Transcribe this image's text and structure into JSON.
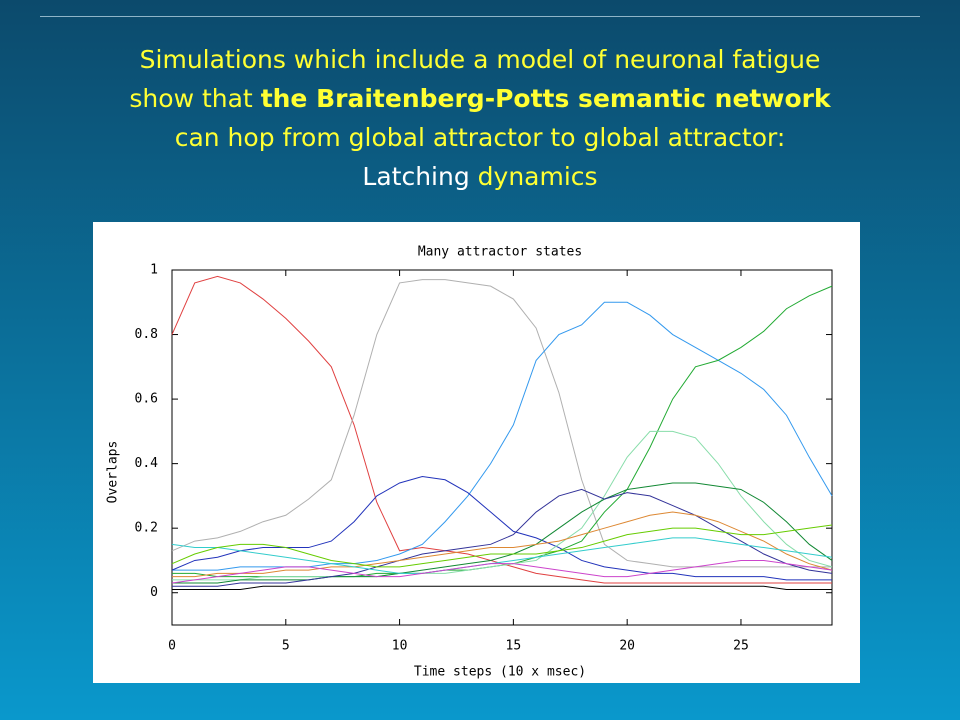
{
  "slide": {
    "heading_lines": [
      [
        {
          "text": "Simulations which include a model of neuronal fatigue",
          "bold": false,
          "color": "#ffff33"
        }
      ],
      [
        {
          "text": "show that ",
          "bold": false,
          "color": "#ffff33"
        },
        {
          "text": "the Braitenberg-Potts semantic network",
          "bold": true,
          "color": "#ffff33"
        }
      ],
      [
        {
          "text": "can hop from global attractor to global attractor:",
          "bold": false,
          "color": "#ffff33"
        }
      ],
      [
        {
          "text": "Latching",
          "bold": false,
          "color": "#ffffff"
        },
        {
          "text": " dynamics",
          "bold": false,
          "color": "#ffff33"
        }
      ]
    ]
  },
  "chart_data": {
    "type": "line",
    "title": "Many attractor states",
    "x_label": "Time steps (10 x msec)",
    "y_label": "Overlaps",
    "x": [
      0,
      1,
      2,
      3,
      4,
      5,
      6,
      7,
      8,
      9,
      10,
      11,
      12,
      13,
      14,
      15,
      16,
      17,
      18,
      19,
      20,
      21,
      22,
      23,
      24,
      25,
      26,
      27,
      28,
      29
    ],
    "xlim": [
      0,
      29
    ],
    "xticks": [
      0,
      5,
      10,
      15,
      20,
      25
    ],
    "ylim": [
      -0.1,
      1
    ],
    "yticks": [
      0,
      0.2,
      0.4,
      0.6,
      0.8,
      1
    ],
    "series": [
      {
        "color": "#e04040",
        "values": [
          0.8,
          0.96,
          0.98,
          0.96,
          0.91,
          0.85,
          0.78,
          0.7,
          0.52,
          0.28,
          0.13,
          0.14,
          0.13,
          0.12,
          0.1,
          0.08,
          0.06,
          0.05,
          0.04,
          0.03,
          0.03,
          0.03,
          0.03,
          0.03,
          0.03,
          0.03,
          0.03,
          0.03,
          0.03,
          0.03
        ]
      },
      {
        "color": "#b0b0b0",
        "values": [
          0.13,
          0.16,
          0.17,
          0.19,
          0.22,
          0.24,
          0.29,
          0.35,
          0.55,
          0.8,
          0.96,
          0.97,
          0.97,
          0.96,
          0.95,
          0.91,
          0.82,
          0.62,
          0.35,
          0.15,
          0.1,
          0.09,
          0.08,
          0.08,
          0.08,
          0.08,
          0.08,
          0.08,
          0.08,
          0.08
        ]
      },
      {
        "color": "#3399ee",
        "values": [
          0.07,
          0.07,
          0.07,
          0.08,
          0.08,
          0.08,
          0.08,
          0.09,
          0.09,
          0.1,
          0.12,
          0.15,
          0.22,
          0.3,
          0.4,
          0.52,
          0.72,
          0.8,
          0.83,
          0.9,
          0.9,
          0.86,
          0.8,
          0.76,
          0.72,
          0.68,
          0.63,
          0.55,
          0.42,
          0.3
        ]
      },
      {
        "color": "#2233bb",
        "values": [
          0.07,
          0.1,
          0.11,
          0.13,
          0.14,
          0.14,
          0.14,
          0.16,
          0.22,
          0.3,
          0.34,
          0.36,
          0.35,
          0.31,
          0.25,
          0.19,
          0.17,
          0.14,
          0.1,
          0.08,
          0.07,
          0.06,
          0.06,
          0.05,
          0.05,
          0.05,
          0.05,
          0.04,
          0.04,
          0.04
        ]
      },
      {
        "color": "#22aa33",
        "values": [
          0.06,
          0.06,
          0.05,
          0.05,
          0.05,
          0.05,
          0.05,
          0.05,
          0.05,
          0.06,
          0.06,
          0.06,
          0.07,
          0.07,
          0.08,
          0.09,
          0.11,
          0.13,
          0.16,
          0.25,
          0.32,
          0.45,
          0.6,
          0.7,
          0.72,
          0.76,
          0.81,
          0.88,
          0.92,
          0.95
        ]
      },
      {
        "color": "#88ddaa",
        "values": [
          0.04,
          0.04,
          0.04,
          0.04,
          0.05,
          0.05,
          0.05,
          0.05,
          0.05,
          0.05,
          0.06,
          0.06,
          0.06,
          0.07,
          0.08,
          0.09,
          0.1,
          0.15,
          0.2,
          0.3,
          0.42,
          0.5,
          0.5,
          0.48,
          0.4,
          0.3,
          0.22,
          0.15,
          0.1,
          0.08
        ]
      },
      {
        "color": "#118833",
        "values": [
          0.03,
          0.03,
          0.03,
          0.04,
          0.04,
          0.04,
          0.04,
          0.05,
          0.05,
          0.05,
          0.06,
          0.07,
          0.08,
          0.09,
          0.1,
          0.12,
          0.15,
          0.2,
          0.25,
          0.29,
          0.32,
          0.33,
          0.34,
          0.34,
          0.33,
          0.32,
          0.28,
          0.22,
          0.15,
          0.1
        ]
      },
      {
        "color": "#333399",
        "values": [
          0.02,
          0.02,
          0.02,
          0.03,
          0.03,
          0.03,
          0.04,
          0.05,
          0.06,
          0.08,
          0.1,
          0.12,
          0.13,
          0.14,
          0.15,
          0.18,
          0.25,
          0.3,
          0.32,
          0.29,
          0.31,
          0.3,
          0.27,
          0.24,
          0.2,
          0.16,
          0.12,
          0.09,
          0.07,
          0.06
        ]
      },
      {
        "color": "#dd8833",
        "values": [
          0.05,
          0.05,
          0.06,
          0.06,
          0.06,
          0.07,
          0.07,
          0.08,
          0.08,
          0.09,
          0.1,
          0.11,
          0.12,
          0.13,
          0.14,
          0.14,
          0.15,
          0.16,
          0.18,
          0.2,
          0.22,
          0.24,
          0.25,
          0.24,
          0.22,
          0.19,
          0.16,
          0.12,
          0.09,
          0.07
        ]
      },
      {
        "color": "#33cccc",
        "values": [
          0.15,
          0.14,
          0.14,
          0.13,
          0.12,
          0.11,
          0.1,
          0.09,
          0.08,
          0.07,
          0.06,
          0.06,
          0.07,
          0.08,
          0.09,
          0.1,
          0.11,
          0.12,
          0.13,
          0.14,
          0.15,
          0.16,
          0.17,
          0.17,
          0.16,
          0.15,
          0.14,
          0.13,
          0.12,
          0.11
        ]
      },
      {
        "color": "#cc44cc",
        "values": [
          0.03,
          0.04,
          0.05,
          0.06,
          0.07,
          0.08,
          0.08,
          0.07,
          0.06,
          0.05,
          0.05,
          0.06,
          0.07,
          0.08,
          0.09,
          0.09,
          0.08,
          0.07,
          0.06,
          0.05,
          0.05,
          0.06,
          0.07,
          0.08,
          0.09,
          0.1,
          0.1,
          0.09,
          0.08,
          0.07
        ]
      },
      {
        "color": "#66cc00",
        "values": [
          0.09,
          0.12,
          0.14,
          0.15,
          0.15,
          0.14,
          0.12,
          0.1,
          0.09,
          0.08,
          0.08,
          0.09,
          0.1,
          0.11,
          0.12,
          0.12,
          0.12,
          0.13,
          0.14,
          0.16,
          0.18,
          0.19,
          0.2,
          0.2,
          0.19,
          0.18,
          0.18,
          0.19,
          0.2,
          0.21
        ]
      },
      {
        "color": "#000000",
        "values": [
          0.01,
          0.01,
          0.01,
          0.01,
          0.02,
          0.02,
          0.02,
          0.02,
          0.02,
          0.02,
          0.02,
          0.02,
          0.02,
          0.02,
          0.02,
          0.02,
          0.02,
          0.02,
          0.02,
          0.02,
          0.02,
          0.02,
          0.02,
          0.02,
          0.02,
          0.02,
          0.02,
          0.01,
          0.01,
          0.01
        ]
      }
    ]
  }
}
